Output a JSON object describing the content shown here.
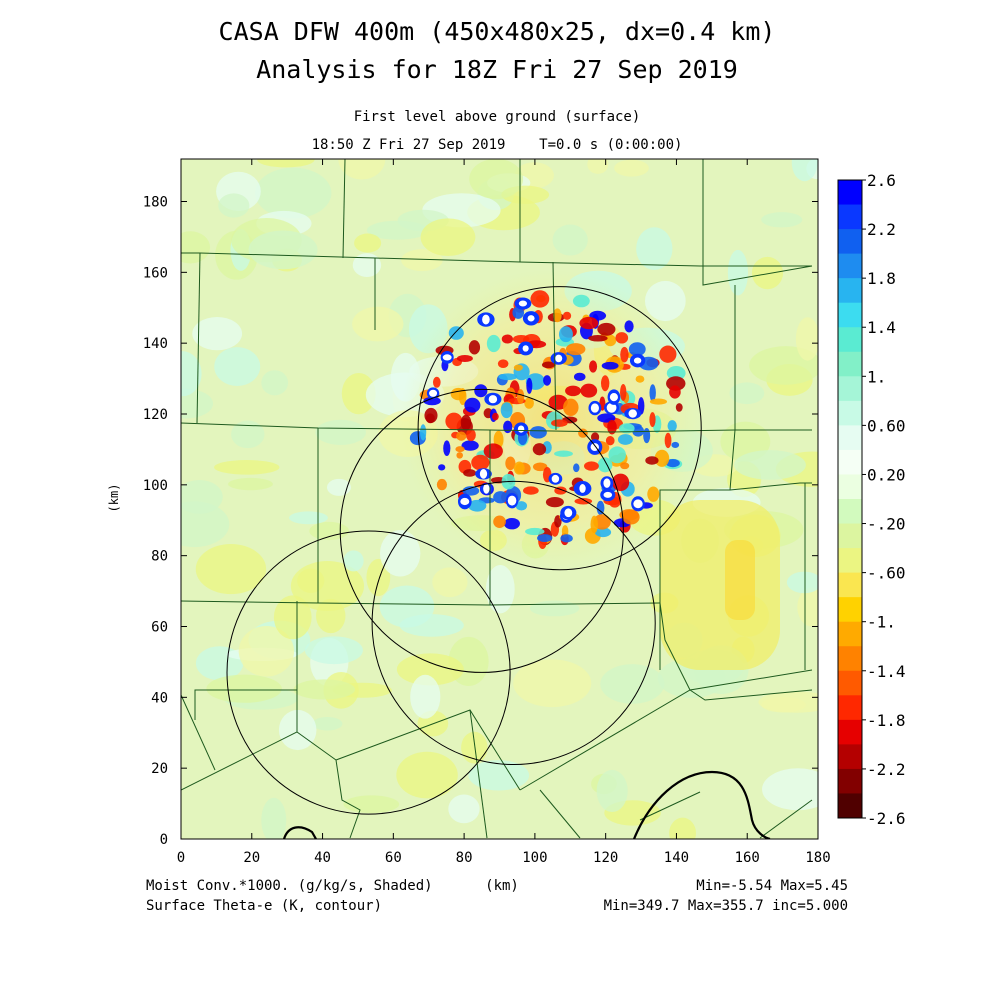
{
  "header": {
    "title_line1": "CASA DFW 400m (450x480x25, dx=0.4 km)",
    "title_line2": "Analysis for 18Z Fri 27 Sep 2019",
    "subtitle_line1": "First level above ground (surface)",
    "subtitle_line2": "18:50 Z Fri 27 Sep 2019    T=0.0 s (0:00:00)"
  },
  "footer": {
    "field1_label": "Moist Conv.*1000. (g/kg/s, Shaded)",
    "field2_label": "Surface Theta-e (K, contour)",
    "units_label": "(km)",
    "field1_stats": "Min=-5.54 Max=5.45",
    "field2_stats": "Min=349.7 Max=355.7 inc=5.000"
  },
  "chart_data": {
    "type": "heatmap",
    "xlabel": "(km)",
    "ylabel": "(km)",
    "xlim": [
      0,
      180
    ],
    "ylim": [
      0,
      192
    ],
    "xticks": [
      "0",
      "20",
      "40",
      "60",
      "80",
      "100",
      "120",
      "140",
      "160",
      "180"
    ],
    "yticks": [
      "0",
      "20",
      "40",
      "60",
      "80",
      "100",
      "120",
      "140",
      "160",
      "180"
    ],
    "colorbar": {
      "labels": [
        "2.6",
        "2.2",
        "1.8",
        "1.4",
        "1.",
        "0.60",
        "0.20",
        "-.20",
        "-.60",
        "-1.",
        "-1.4",
        "-1.8",
        "-2.2",
        "-2.6"
      ],
      "colors": [
        "#0000ff",
        "#0a38ff",
        "#1060f0",
        "#1e8cf0",
        "#28b4f0",
        "#3cdcf0",
        "#5aebd2",
        "#82f0c8",
        "#a5f5d7",
        "#c8fae6",
        "#e6fcf2",
        "#f5fff5",
        "#ebffe1",
        "#d2fabe",
        "#dcf5a0",
        "#ebf582",
        "#fae650",
        "#ffd200",
        "#ffaa00",
        "#ff8200",
        "#ff5a00",
        "#ff2800",
        "#e60000",
        "#b40000",
        "#820000",
        "#500000"
      ]
    },
    "radar_rings": [
      {
        "name": "ring-1",
        "center_km": [
          107,
          116
        ],
        "radius_km": 40
      },
      {
        "name": "ring-2",
        "center_km": [
          85,
          87
        ],
        "radius_km": 40
      },
      {
        "name": "ring-3",
        "center_km": [
          94,
          61
        ],
        "radius_km": 40
      },
      {
        "name": "ring-4",
        "center_km": [
          53,
          47
        ],
        "radius_km": 40
      }
    ],
    "regions": [
      {
        "name": "convective-core",
        "center_km": [
          105,
          120
        ],
        "radius_km": 35,
        "value": "mixed -2.6 to 2.6"
      },
      {
        "name": "background",
        "value": "-0.2 to 0.2"
      },
      {
        "name": "east-negative-band",
        "center_km": [
          160,
          75
        ],
        "value": "-0.6"
      }
    ]
  }
}
